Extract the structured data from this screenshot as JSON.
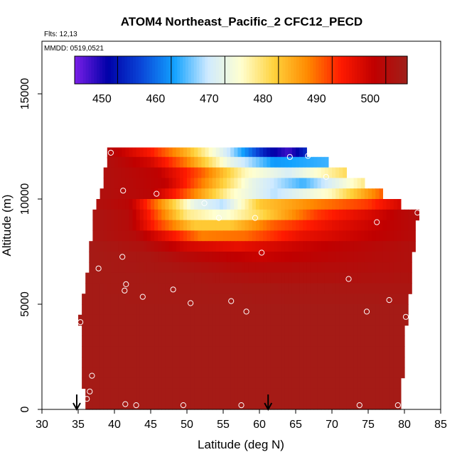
{
  "chart_data": {
    "type": "heatmap",
    "title": "ATOM4 Northeast_Pacific_2 CFC12_PECD",
    "flights_label": "Flts: 12,13",
    "mmdd_label": "MMDD: 0519,0521",
    "xlabel": "Latitude (deg N)",
    "ylabel": "Altitude (m)",
    "xlim": [
      30,
      85
    ],
    "ylim": [
      0,
      17500
    ],
    "x_ticks": [
      "30",
      "35",
      "40",
      "45",
      "50",
      "55",
      "60",
      "65",
      "70",
      "75",
      "80",
      "85"
    ],
    "y_ticks": [
      "0",
      "5000",
      "10000",
      "15000"
    ],
    "colorbar": {
      "range": [
        442,
        504
      ],
      "ticks": [
        "450",
        "460",
        "470",
        "480",
        "490",
        "500"
      ],
      "colors": [
        "#7a1fe8",
        "#0000a8",
        "#0a46d8",
        "#12a2ff",
        "#cfeaff",
        "#ffffd0",
        "#ffd23c",
        "#ff8a00",
        "#ff1a00",
        "#c00000",
        "#a0201a"
      ]
    },
    "field_layers": [
      {
        "alt": 12200,
        "lat_start": 39,
        "lat_end": 66.5,
        "values": [
          {
            "lat": 39,
            "v": 500
          },
          {
            "lat": 45,
            "v": 492
          },
          {
            "lat": 50,
            "v": 482
          },
          {
            "lat": 56,
            "v": 466
          },
          {
            "lat": 61,
            "v": 450
          },
          {
            "lat": 64,
            "v": 445
          },
          {
            "lat": 66.5,
            "v": 452
          }
        ]
      },
      {
        "alt": 11750,
        "lat_start": 39,
        "lat_end": 69.5,
        "values": [
          {
            "lat": 39,
            "v": 501
          },
          {
            "lat": 45,
            "v": 496
          },
          {
            "lat": 50,
            "v": 486
          },
          {
            "lat": 56,
            "v": 470
          },
          {
            "lat": 62,
            "v": 460
          },
          {
            "lat": 69.5,
            "v": 462
          }
        ]
      },
      {
        "alt": 11250,
        "lat_start": 38.5,
        "lat_end": 72,
        "values": [
          {
            "lat": 38.5,
            "v": 501
          },
          {
            "lat": 46,
            "v": 498
          },
          {
            "lat": 52,
            "v": 488
          },
          {
            "lat": 58,
            "v": 474
          },
          {
            "lat": 64,
            "v": 468
          },
          {
            "lat": 72,
            "v": 478
          }
        ]
      },
      {
        "alt": 10750,
        "lat_start": 38.5,
        "lat_end": 74.5,
        "values": [
          {
            "lat": 38.5,
            "v": 501
          },
          {
            "lat": 47,
            "v": 498
          },
          {
            "lat": 53,
            "v": 484
          },
          {
            "lat": 59,
            "v": 470
          },
          {
            "lat": 66,
            "v": 462
          },
          {
            "lat": 74.5,
            "v": 476
          }
        ]
      },
      {
        "alt": 10250,
        "lat_start": 38,
        "lat_end": 77,
        "values": [
          {
            "lat": 38,
            "v": 501
          },
          {
            "lat": 45,
            "v": 499
          },
          {
            "lat": 50,
            "v": 488
          },
          {
            "lat": 56,
            "v": 474
          },
          {
            "lat": 62,
            "v": 466
          },
          {
            "lat": 70,
            "v": 474
          },
          {
            "lat": 77,
            "v": 488
          }
        ]
      },
      {
        "alt": 9750,
        "lat_start": 37.5,
        "lat_end": 79.5,
        "values": [
          {
            "lat": 37.5,
            "v": 501
          },
          {
            "lat": 42,
            "v": 499
          },
          {
            "lat": 46,
            "v": 486
          },
          {
            "lat": 51,
            "v": 470
          },
          {
            "lat": 55,
            "v": 466
          },
          {
            "lat": 60,
            "v": 480
          },
          {
            "lat": 68,
            "v": 486
          },
          {
            "lat": 75,
            "v": 490
          },
          {
            "lat": 79.5,
            "v": 496
          }
        ]
      },
      {
        "alt": 9250,
        "lat_start": 37,
        "lat_end": 82,
        "values": [
          {
            "lat": 37,
            "v": 502
          },
          {
            "lat": 42,
            "v": 500
          },
          {
            "lat": 46,
            "v": 488
          },
          {
            "lat": 50,
            "v": 476
          },
          {
            "lat": 55,
            "v": 472
          },
          {
            "lat": 60,
            "v": 478
          },
          {
            "lat": 68,
            "v": 490
          },
          {
            "lat": 76,
            "v": 496
          },
          {
            "lat": 82,
            "v": 501
          }
        ]
      },
      {
        "alt": 8750,
        "lat_start": 37,
        "lat_end": 81.5,
        "values": [
          {
            "lat": 37,
            "v": 502
          },
          {
            "lat": 42,
            "v": 500
          },
          {
            "lat": 46,
            "v": 490
          },
          {
            "lat": 51,
            "v": 480
          },
          {
            "lat": 56,
            "v": 480
          },
          {
            "lat": 62,
            "v": 488
          },
          {
            "lat": 70,
            "v": 494
          },
          {
            "lat": 81.5,
            "v": 500
          }
        ]
      },
      {
        "alt": 8250,
        "lat_start": 37,
        "lat_end": 81.5,
        "values": [
          {
            "lat": 37,
            "v": 502
          },
          {
            "lat": 43,
            "v": 500
          },
          {
            "lat": 47,
            "v": 494
          },
          {
            "lat": 52,
            "v": 486
          },
          {
            "lat": 58,
            "v": 487
          },
          {
            "lat": 66,
            "v": 494
          },
          {
            "lat": 81.5,
            "v": 500
          }
        ]
      },
      {
        "alt": 7750,
        "lat_start": 36.5,
        "lat_end": 81.5,
        "values": [
          {
            "lat": 36.5,
            "v": 503
          },
          {
            "lat": 44,
            "v": 501
          },
          {
            "lat": 50,
            "v": 496
          },
          {
            "lat": 57,
            "v": 494
          },
          {
            "lat": 66,
            "v": 497
          },
          {
            "lat": 81.5,
            "v": 501
          }
        ]
      },
      {
        "alt": 7250,
        "lat_start": 36.5,
        "lat_end": 81,
        "values": [
          {
            "lat": 36.5,
            "v": 503
          },
          {
            "lat": 45,
            "v": 502
          },
          {
            "lat": 52,
            "v": 499
          },
          {
            "lat": 60,
            "v": 497
          },
          {
            "lat": 70,
            "v": 499
          },
          {
            "lat": 81,
            "v": 501
          }
        ]
      },
      {
        "alt": 6750,
        "lat_start": 36.5,
        "lat_end": 81,
        "values": [
          {
            "lat": 36.5,
            "v": 503
          },
          {
            "lat": 48,
            "v": 502
          },
          {
            "lat": 58,
            "v": 499.5
          },
          {
            "lat": 68,
            "v": 500
          },
          {
            "lat": 81,
            "v": 501
          }
        ]
      },
      {
        "alt": 6250,
        "lat_start": 36,
        "lat_end": 81,
        "values": [
          {
            "lat": 36,
            "v": 503
          },
          {
            "lat": 50,
            "v": 502.5
          },
          {
            "lat": 60,
            "v": 501
          },
          {
            "lat": 70,
            "v": 501
          },
          {
            "lat": 81,
            "v": 501.5
          }
        ]
      },
      {
        "alt": 5750,
        "lat_start": 36,
        "lat_end": 81,
        "values": [
          {
            "lat": 36,
            "v": 503
          },
          {
            "lat": 55,
            "v": 502.5
          },
          {
            "lat": 81,
            "v": 502
          }
        ]
      },
      {
        "alt": 5250,
        "lat_start": 35.5,
        "lat_end": 80.5,
        "values": [
          {
            "lat": 35.5,
            "v": 503
          },
          {
            "lat": 80.5,
            "v": 502.5
          }
        ]
      },
      {
        "alt": 4750,
        "lat_start": 35.5,
        "lat_end": 80.5,
        "values": [
          {
            "lat": 35.5,
            "v": 503
          },
          {
            "lat": 80.5,
            "v": 503
          }
        ]
      },
      {
        "alt": 4250,
        "lat_start": 35,
        "lat_end": 80.5,
        "values": [
          {
            "lat": 35,
            "v": 503
          },
          {
            "lat": 80.5,
            "v": 503
          }
        ]
      },
      {
        "alt": 3750,
        "lat_start": 35.5,
        "lat_end": 80,
        "values": [
          {
            "lat": 35.5,
            "v": 503
          },
          {
            "lat": 80,
            "v": 503
          }
        ]
      },
      {
        "alt": 3250,
        "lat_start": 35.5,
        "lat_end": 80,
        "values": [
          {
            "lat": 35.5,
            "v": 503
          },
          {
            "lat": 80,
            "v": 503
          }
        ]
      },
      {
        "alt": 2750,
        "lat_start": 35.5,
        "lat_end": 80,
        "values": [
          {
            "lat": 35.5,
            "v": 503
          },
          {
            "lat": 80,
            "v": 503
          }
        ]
      },
      {
        "alt": 2250,
        "lat_start": 35.5,
        "lat_end": 80,
        "values": [
          {
            "lat": 35.5,
            "v": 503
          },
          {
            "lat": 80,
            "v": 503
          }
        ]
      },
      {
        "alt": 1750,
        "lat_start": 35.5,
        "lat_end": 80,
        "values": [
          {
            "lat": 35.5,
            "v": 503
          },
          {
            "lat": 80,
            "v": 503
          }
        ]
      },
      {
        "alt": 1250,
        "lat_start": 35.5,
        "lat_end": 79.5,
        "values": [
          {
            "lat": 35.5,
            "v": 503
          },
          {
            "lat": 79.5,
            "v": 503
          }
        ]
      },
      {
        "alt": 750,
        "lat_start": 36,
        "lat_end": 79.5,
        "values": [
          {
            "lat": 36,
            "v": 503
          },
          {
            "lat": 79.5,
            "v": 503
          }
        ]
      },
      {
        "alt": 250,
        "lat_start": 36,
        "lat_end": 79.5,
        "values": [
          {
            "lat": 36,
            "v": 503
          },
          {
            "lat": 79.5,
            "v": 503
          }
        ]
      }
    ],
    "sample_points": [
      {
        "lat": 39.5,
        "alt": 12200
      },
      {
        "lat": 41.2,
        "alt": 10400
      },
      {
        "lat": 45.8,
        "alt": 10250
      },
      {
        "lat": 52.4,
        "alt": 9800
      },
      {
        "lat": 54.4,
        "alt": 9100
      },
      {
        "lat": 59.4,
        "alt": 9100
      },
      {
        "lat": 64.2,
        "alt": 12000
      },
      {
        "lat": 66.7,
        "alt": 12050
      },
      {
        "lat": 69.2,
        "alt": 11050
      },
      {
        "lat": 76.2,
        "alt": 8900
      },
      {
        "lat": 81.8,
        "alt": 9350
      },
      {
        "lat": 60.3,
        "alt": 7450
      },
      {
        "lat": 41.1,
        "alt": 7250
      },
      {
        "lat": 37.8,
        "alt": 6700
      },
      {
        "lat": 41.6,
        "alt": 5950
      },
      {
        "lat": 41.4,
        "alt": 5650
      },
      {
        "lat": 43.9,
        "alt": 5350
      },
      {
        "lat": 48.1,
        "alt": 5700
      },
      {
        "lat": 50.5,
        "alt": 5050
      },
      {
        "lat": 56.1,
        "alt": 5150
      },
      {
        "lat": 58.2,
        "alt": 4650
      },
      {
        "lat": 72.3,
        "alt": 6200
      },
      {
        "lat": 74.8,
        "alt": 4650
      },
      {
        "lat": 77.9,
        "alt": 5200
      },
      {
        "lat": 80.2,
        "alt": 4400
      },
      {
        "lat": 35.3,
        "alt": 4150
      },
      {
        "lat": 36.9,
        "alt": 1600
      },
      {
        "lat": 36.6,
        "alt": 850
      },
      {
        "lat": 36.2,
        "alt": 500
      },
      {
        "lat": 41.5,
        "alt": 250
      },
      {
        "lat": 43.0,
        "alt": 200
      },
      {
        "lat": 49.5,
        "alt": 200
      },
      {
        "lat": 57.5,
        "alt": 200
      },
      {
        "lat": 73.8,
        "alt": 200
      },
      {
        "lat": 79.1,
        "alt": 200
      }
    ],
    "arrows": [
      {
        "lat": 34.8
      },
      {
        "lat": 61.2
      }
    ]
  }
}
